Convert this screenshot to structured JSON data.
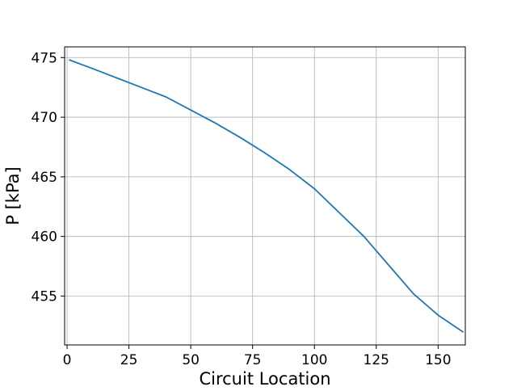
{
  "chart_data": {
    "type": "line",
    "title": "",
    "xlabel": "Circuit Location",
    "ylabel": "P [kPa]",
    "xlim": [
      -1,
      161
    ],
    "ylim": [
      450.9,
      475.9
    ],
    "xticks": [
      0,
      25,
      50,
      75,
      100,
      125,
      150
    ],
    "yticks": [
      455,
      460,
      465,
      470,
      475
    ],
    "grid": true,
    "legend": "none",
    "series": [
      {
        "color": "#1f77b4",
        "x": [
          1,
          10,
          20,
          30,
          40,
          50,
          60,
          70,
          80,
          90,
          100,
          110,
          120,
          130,
          140,
          150,
          160
        ],
        "y": [
          474.8,
          474.1,
          473.3,
          472.5,
          471.7,
          470.6,
          469.5,
          468.3,
          467.0,
          465.6,
          464.0,
          462.0,
          460.0,
          457.6,
          455.2,
          453.4,
          452.0
        ]
      }
    ]
  }
}
